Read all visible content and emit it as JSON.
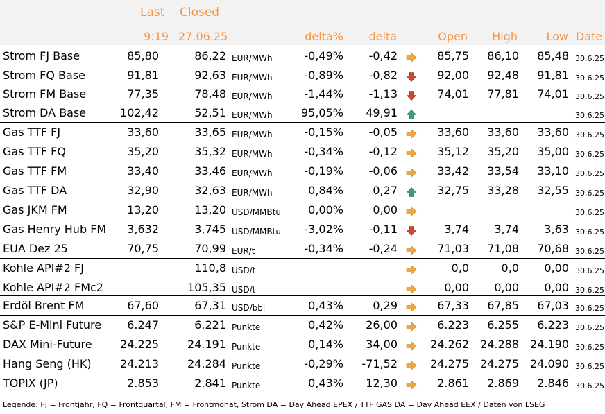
{
  "header": {
    "last": "Last",
    "closed": "Closed",
    "last_time": "9:19",
    "closed_date": "27.06.25",
    "delta_pct": "delta%",
    "delta": "delta",
    "open": "Open",
    "high": "High",
    "low": "Low",
    "date": "Date"
  },
  "colors": {
    "header_text": "#f79646",
    "header_bg": "#f2f2f2",
    "arrow_right": "#f2a640",
    "arrow_down": "#d9442b",
    "arrow_up": "#3e9e7a"
  },
  "rows": [
    {
      "name": "Strom FJ Base",
      "last": "85,80",
      "closed": "86,22",
      "unit": "EUR/MWh",
      "delta_pct": "-0,49%",
      "delta": "-0,42",
      "trend": "right",
      "open": "85,75",
      "high": "86,10",
      "low": "85,48",
      "date": "30.6.25"
    },
    {
      "name": "Strom FQ Base",
      "last": "91,81",
      "closed": "92,63",
      "unit": "EUR/MWh",
      "delta_pct": "-0,89%",
      "delta": "-0,82",
      "trend": "down",
      "open": "92,00",
      "high": "92,48",
      "low": "91,81",
      "date": "30.6.25"
    },
    {
      "name": "Strom FM Base",
      "last": "77,35",
      "closed": "78,48",
      "unit": "EUR/MWh",
      "delta_pct": "-1,44%",
      "delta": "-1,13",
      "trend": "down",
      "open": "74,01",
      "high": "77,81",
      "low": "74,01",
      "date": "30.6.25"
    },
    {
      "name": "Strom DA Base",
      "last": "102,42",
      "closed": "52,51",
      "unit": "EUR/MWh",
      "delta_pct": "95,05%",
      "delta": "49,91",
      "trend": "up",
      "open": "",
      "high": "",
      "low": "",
      "date": "30.6.25"
    },
    {
      "name": "Gas TTF FJ",
      "last": "33,60",
      "closed": "33,65",
      "unit": "EUR/MWh",
      "delta_pct": "-0,15%",
      "delta": "-0,05",
      "trend": "right",
      "open": "33,60",
      "high": "33,60",
      "low": "33,60",
      "date": "30.6.25"
    },
    {
      "name": "Gas TTF FQ",
      "last": "35,20",
      "closed": "35,32",
      "unit": "EUR/MWh",
      "delta_pct": "-0,34%",
      "delta": "-0,12",
      "trend": "right",
      "open": "35,12",
      "high": "35,20",
      "low": "35,00",
      "date": "30.6.25"
    },
    {
      "name": "Gas TTF FM",
      "last": "33,40",
      "closed": "33,46",
      "unit": "EUR/MWh",
      "delta_pct": "-0,19%",
      "delta": "-0,06",
      "trend": "right",
      "open": "33,42",
      "high": "33,54",
      "low": "33,10",
      "date": "30.6.25"
    },
    {
      "name": "Gas TTF DA",
      "last": "32,90",
      "closed": "32,63",
      "unit": "EUR/MWh",
      "delta_pct": "0,84%",
      "delta": "0,27",
      "trend": "up",
      "open": "32,75",
      "high": "33,28",
      "low": "32,55",
      "date": "30.6.25"
    },
    {
      "name": "Gas JKM FM",
      "last": "13,20",
      "closed": "13,20",
      "unit": "USD/MMBtu",
      "delta_pct": "0,00%",
      "delta": "0,00",
      "trend": "right",
      "open": "",
      "high": "",
      "low": "",
      "date": "30.6.25"
    },
    {
      "name": "Gas Henry Hub FM",
      "last": "3,632",
      "closed": "3,745",
      "unit": "USD/MMBtu",
      "delta_pct": "-3,02%",
      "delta": "-0,11",
      "trend": "down",
      "open": "3,74",
      "high": "3,74",
      "low": "3,63",
      "date": "30.6.25"
    },
    {
      "name": "EUA Dez 25",
      "last": "70,75",
      "closed": "70,99",
      "unit": "EUR/t",
      "delta_pct": "-0,34%",
      "delta": "-0,24",
      "trend": "right",
      "open": "71,03",
      "high": "71,08",
      "low": "70,68",
      "date": "30.6.25"
    },
    {
      "name": "Kohle API#2 FJ",
      "last": "",
      "closed": "110,8",
      "unit": "USD/t",
      "delta_pct": "",
      "delta": "",
      "trend": "right",
      "open": "0,0",
      "high": "0,0",
      "low": "0,00",
      "date": "30.6.25"
    },
    {
      "name": "Kohle API#2 FMc2",
      "last": "",
      "closed": "105,35",
      "unit": "USD/t",
      "delta_pct": "",
      "delta": "",
      "trend": "right",
      "open": "0,00",
      "high": "0,00",
      "low": "0,00",
      "date": "30.6.25"
    },
    {
      "name": "Erdöl Brent FM",
      "last": "67,60",
      "closed": "67,31",
      "unit": "USD/bbl",
      "delta_pct": "0,43%",
      "delta": "0,29",
      "trend": "right",
      "open": "67,33",
      "high": "67,85",
      "low": "67,03",
      "date": "30.6.25"
    },
    {
      "name": "S&P E-Mini Future",
      "last": "6.247",
      "closed": "6.221",
      "unit": "Punkte",
      "delta_pct": "0,42%",
      "delta": "26,00",
      "trend": "right",
      "open": "6.223",
      "high": "6.255",
      "low": "6.223",
      "date": "30.6.25"
    },
    {
      "name": "DAX Mini-Future",
      "last": "24.225",
      "closed": "24.191",
      "unit": "Punkte",
      "delta_pct": "0,14%",
      "delta": "34,00",
      "trend": "right",
      "open": "24.262",
      "high": "24.288",
      "low": "24.190",
      "date": "30.6.25"
    },
    {
      "name": "Hang Seng (HK)",
      "last": "24.213",
      "closed": "24.284",
      "unit": "Punkte",
      "delta_pct": "-0,29%",
      "delta": "-71,52",
      "trend": "right",
      "open": "24.275",
      "high": "24.275",
      "low": "24.090",
      "date": "30.6.25"
    },
    {
      "name": "TOPIX (JP)",
      "last": "2.853",
      "closed": "2.841",
      "unit": "Punkte",
      "delta_pct": "0,43%",
      "delta": "12,30",
      "trend": "right",
      "open": "2.861",
      "high": "2.869",
      "low": "2.846",
      "date": "30.6.25"
    }
  ],
  "legend": "Legende: FJ = Frontjahr, FQ = Frontquartal, FM = Frontmonat, Strom DA = Day Ahead EPEX / TTF GAS DA = Day Ahead EEX / Daten von LSEG"
}
